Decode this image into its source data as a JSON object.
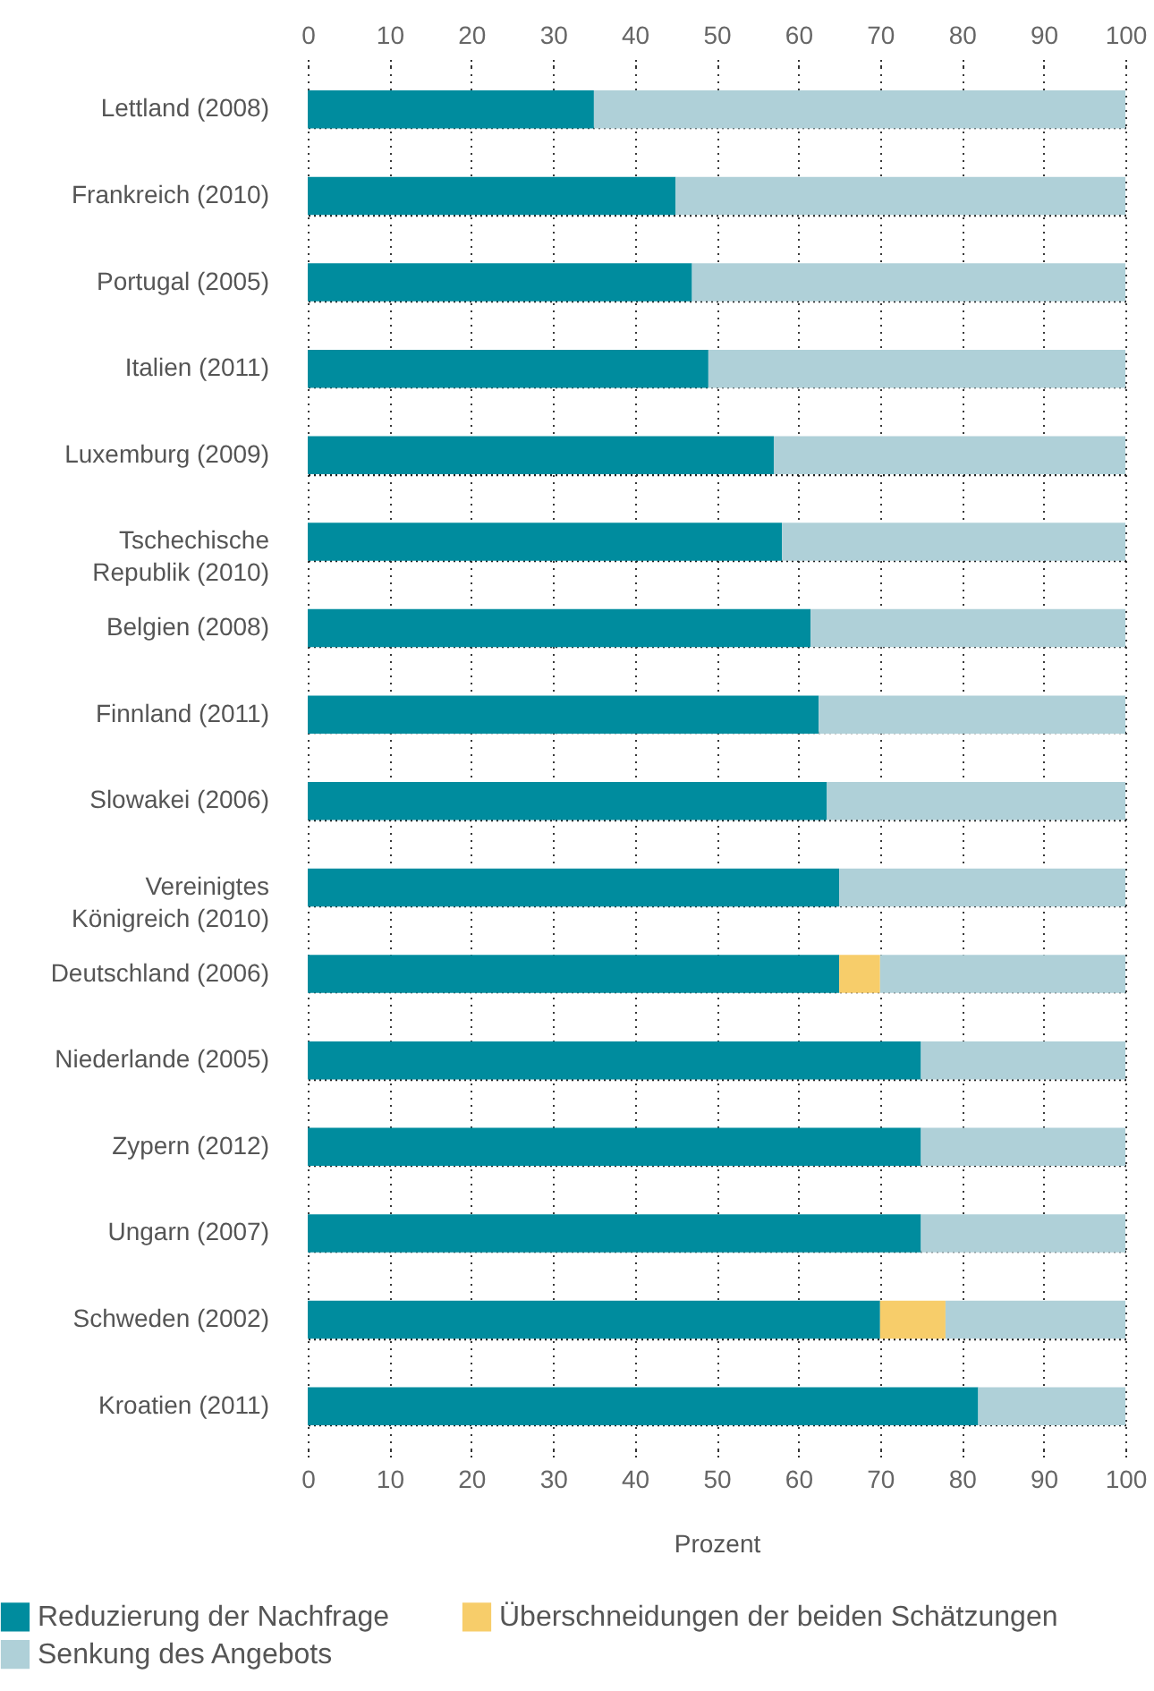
{
  "chart_data": {
    "type": "bar",
    "orientation": "horizontal",
    "stacked": true,
    "xlabel": "Prozent",
    "categories": [
      "Lettland (2008)",
      "Frankreich (2010)",
      "Portugal (2005)",
      "Italien (2011)",
      "Luxemburg (2009)",
      "Tschechische Republik (2010)",
      "Belgien (2008)",
      "Finnland (2011)",
      "Slowakei (2006)",
      "Vereinigtes Königreich (2010)",
      "Deutschland (2006)",
      "Niederlande (2005)",
      "Zypern (2012)",
      "Ungarn (2007)",
      "Schweden (2002)",
      "Kroatien (2011)"
    ],
    "series": [
      {
        "name": "Reduzierung der Nachfrage",
        "color": "#008c9e",
        "values": [
          35,
          45,
          47,
          49,
          57,
          58,
          61.5,
          62.5,
          63.5,
          65,
          65,
          75,
          75,
          75,
          70,
          82
        ]
      },
      {
        "name": "Überschneidungen der beiden Schätzungen",
        "color": "#f7cd6a",
        "values": [
          0,
          0,
          0,
          0,
          0,
          0,
          0,
          0,
          0,
          0,
          5,
          0,
          0,
          0,
          8,
          0
        ]
      },
      {
        "name": "Senkung des Angebots",
        "color": "#afd0d8",
        "values": [
          65,
          55,
          53,
          51,
          43,
          42,
          38.5,
          37.5,
          36.5,
          35,
          30,
          25,
          25,
          25,
          22,
          18
        ]
      }
    ],
    "xlim": [
      0,
      100
    ],
    "xticks": [
      0,
      10,
      20,
      30,
      40,
      50,
      60,
      70,
      80,
      90,
      100
    ],
    "x2lim": [
      0,
      100
    ],
    "x2ticks": [
      0,
      10,
      20,
      30,
      40,
      50,
      60,
      70,
      80,
      90,
      100
    ],
    "grid": true,
    "legend": "bottom"
  }
}
